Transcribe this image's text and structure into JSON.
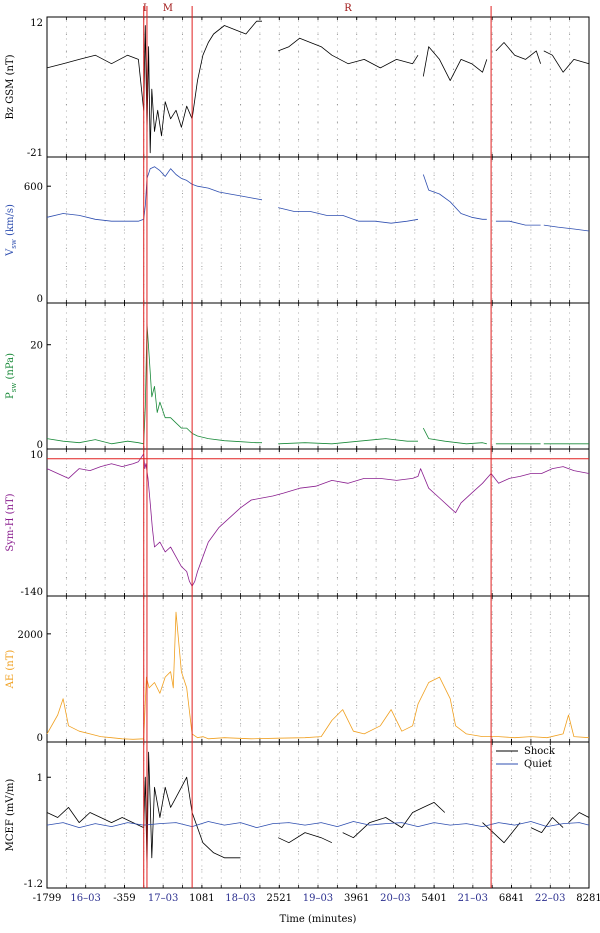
{
  "chart_data": {
    "type": "line",
    "xlabel": "Time (minutes)",
    "xlim": [
      -1799,
      8281
    ],
    "xticks": [
      -1799,
      -359,
      1081,
      2521,
      3961,
      5401,
      6841,
      8281
    ],
    "date_labels": [
      {
        "text": "16–03",
        "x": -1080
      },
      {
        "text": "17–03",
        "x": 360
      },
      {
        "text": "18–03",
        "x": 1800
      },
      {
        "text": "19–03",
        "x": 3240
      },
      {
        "text": "20–03",
        "x": 4680
      },
      {
        "text": "21–03",
        "x": 6120
      },
      {
        "text": "22–03",
        "x": 7560
      }
    ],
    "event_lines": [
      0,
      60,
      900,
      6460
    ],
    "event_labels": [
      {
        "text": "I",
        "x": 20
      },
      {
        "text": "M",
        "x": 450
      },
      {
        "text": "R",
        "x": 3800
      }
    ],
    "colors": {
      "event": "#e02020",
      "bz": "#000000",
      "vsw": "#2f4fb0",
      "psw": "#1a8a3a",
      "symh": "#8a1f8f",
      "ae": "#f0a020",
      "shock": "#000000",
      "quiet": "#2f4fb0",
      "date": "#2b2f8f"
    },
    "panels": [
      {
        "id": "bz",
        "ylabel": "Bz GSM (nT)",
        "ylim": [
          -21,
          12
        ],
        "yticks": [
          -21,
          12
        ],
        "gaps": [
          [
            2200,
            2500
          ],
          [
            5100,
            5200
          ],
          [
            6380,
            6550
          ],
          [
            7380,
            7440
          ]
        ],
        "series": [
          {
            "color_key": "bz",
            "x": [
              -1799,
              -1500,
              -1200,
              -900,
              -600,
              -300,
              -100,
              0,
              30,
              60,
              90,
              120,
              150,
              200,
              260,
              330,
              400,
              500,
              600,
              700,
              800,
              900,
              1000,
              1100,
              1200,
              1300,
              1500,
              1700,
              1900,
              2100,
              2200,
              2500,
              2700,
              2900,
              3100,
              3300,
              3500,
              3800,
              4100,
              4400,
              4700,
              5000,
              5100,
              5200,
              5300,
              5500,
              5700,
              5900,
              6100,
              6300,
              6380,
              6550,
              6700,
              6900,
              7100,
              7300,
              7380,
              7440,
              7600,
              7800,
              8000,
              8281
            ],
            "y": [
              0,
              1,
              2,
              3,
              1,
              3,
              2,
              -10,
              10,
              -15,
              5,
              -20,
              -5,
              -15,
              -10,
              -16,
              -8,
              -12,
              -10,
              -14,
              -9,
              -12,
              -3,
              3,
              6,
              8,
              10,
              9,
              8,
              11,
              11,
              4,
              5,
              7,
              6,
              5,
              3,
              1,
              2,
              0,
              2,
              1,
              3,
              -2,
              5,
              2,
              -3,
              2,
              1,
              -1,
              2,
              4,
              6,
              3,
              2,
              4,
              1,
              4,
              3,
              -1,
              2,
              1
            ]
          }
        ]
      },
      {
        "id": "vsw",
        "ylabel": "V_SW (km/s)",
        "ylim": [
          0,
          750
        ],
        "yticks": [
          0,
          600
        ],
        "gaps": [
          [
            2200,
            2500
          ],
          [
            5100,
            5200
          ],
          [
            6380,
            6550
          ],
          [
            7380,
            7440
          ]
        ],
        "series": [
          {
            "color_key": "vsw",
            "x": [
              -1799,
              -1500,
              -1200,
              -900,
              -600,
              -300,
              -100,
              0,
              30,
              60,
              120,
              200,
              300,
              400,
              500,
              600,
              700,
              800,
              900,
              1000,
              1200,
              1400,
              1600,
              1800,
              2000,
              2200,
              2500,
              2800,
              3100,
              3400,
              3700,
              4000,
              4300,
              4600,
              4900,
              5100,
              5200,
              5300,
              5500,
              5700,
              5900,
              6100,
              6300,
              6380,
              6550,
              6800,
              7100,
              7380,
              7440,
              7700,
              8000,
              8281
            ],
            "y": [
              440,
              460,
              450,
              430,
              420,
              420,
              420,
              430,
              500,
              640,
              690,
              700,
              680,
              650,
              690,
              660,
              640,
              630,
              610,
              600,
              590,
              570,
              560,
              550,
              540,
              530,
              490,
              470,
              470,
              450,
              450,
              420,
              420,
              410,
              420,
              430,
              660,
              580,
              560,
              520,
              460,
              440,
              430,
              430,
              420,
              420,
              400,
              400,
              400,
              390,
              380,
              370
            ]
          }
        ]
      },
      {
        "id": "psw",
        "ylabel": "P_SW (nPa)",
        "ylim": [
          0,
          28
        ],
        "yticks": [
          0,
          20
        ],
        "gaps": [
          [
            2200,
            2500
          ],
          [
            5100,
            5200
          ],
          [
            6380,
            6550
          ],
          [
            7380,
            7440
          ]
        ],
        "series": [
          {
            "color_key": "psw",
            "x": [
              -1799,
              -1500,
              -1200,
              -900,
              -600,
              -300,
              -100,
              0,
              30,
              60,
              100,
              150,
              200,
              250,
              300,
              400,
              500,
              600,
              700,
              800,
              900,
              1000,
              1200,
              1500,
              1800,
              2100,
              2200,
              2500,
              3000,
              3500,
              4000,
              4500,
              4900,
              5100,
              5200,
              5300,
              5600,
              6000,
              6300,
              6380,
              6550,
              7000,
              7380,
              7440,
              8000,
              8281
            ],
            "y": [
              2,
              1.5,
              1.2,
              1.8,
              1,
              1.5,
              1.2,
              1,
              8,
              24,
              18,
              10,
              12,
              7,
              9,
              6,
              6,
              5,
              4,
              4,
              3,
              2.5,
              2,
              1.6,
              1.4,
              1.2,
              1.2,
              1,
              1.2,
              1,
              1.5,
              2,
              1.5,
              1.5,
              4,
              2,
              1.5,
              1,
              1.2,
              1,
              1,
              1,
              1,
              1,
              1,
              1
            ]
          }
        ]
      },
      {
        "id": "symh",
        "ylabel": "Sym-H (nT)",
        "ylim": [
          -140,
          10
        ],
        "yticks": [
          -140,
          10
        ],
        "hline": 0,
        "series": [
          {
            "color_key": "symh",
            "x": [
              -1799,
              -1600,
              -1400,
              -1200,
              -1000,
              -800,
              -600,
              -400,
              -200,
              -100,
              0,
              20,
              40,
              80,
              120,
              160,
              200,
              300,
              400,
              500,
              600,
              700,
              800,
              850,
              900,
              950,
              1000,
              1100,
              1200,
              1400,
              1600,
              1800,
              2000,
              2200,
              2400,
              2600,
              2900,
              3200,
              3500,
              3800,
              4100,
              4400,
              4700,
              5000,
              5100,
              5150,
              5300,
              5500,
              5700,
              5800,
              5900,
              6100,
              6300,
              6460,
              6600,
              6800,
              7000,
              7200,
              7400,
              7600,
              7800,
              8000,
              8281
            ],
            "y": [
              -10,
              -15,
              -20,
              -10,
              -12,
              -8,
              -5,
              -8,
              -5,
              -3,
              5,
              -10,
              -5,
              -20,
              -45,
              -70,
              -90,
              -85,
              -95,
              -90,
              -100,
              -110,
              -115,
              -125,
              -130,
              -125,
              -115,
              -100,
              -85,
              -70,
              -60,
              -50,
              -42,
              -40,
              -38,
              -35,
              -30,
              -28,
              -22,
              -25,
              -20,
              -20,
              -22,
              -20,
              -18,
              -10,
              -30,
              -40,
              -50,
              -55,
              -45,
              -35,
              -25,
              -15,
              -25,
              -20,
              -18,
              -15,
              -15,
              -10,
              -8,
              -12,
              -15
            ]
          }
        ]
      },
      {
        "id": "ae",
        "ylabel": "AE (nT)",
        "ylim": [
          0,
          2700
        ],
        "yticks": [
          0,
          2000
        ],
        "series": [
          {
            "color_key": "ae",
            "x": [
              -1799,
              -1600,
              -1500,
              -1400,
              -1200,
              -1000,
              -800,
              -600,
              -400,
              -200,
              0,
              50,
              100,
              200,
              300,
              400,
              500,
              550,
              600,
              700,
              800,
              900,
              1000,
              1100,
              1200,
              1500,
              2000,
              2500,
              3000,
              3300,
              3500,
              3700,
              3900,
              4100,
              4400,
              4600,
              4800,
              5000,
              5100,
              5300,
              5500,
              5700,
              5800,
              6000,
              6300,
              6600,
              6900,
              7200,
              7500,
              7800,
              7900,
              8000,
              8281
            ],
            "y": [
              150,
              500,
              800,
              300,
              200,
              150,
              100,
              80,
              60,
              50,
              60,
              1200,
              1000,
              1100,
              900,
              1200,
              1300,
              1000,
              2400,
              1300,
              1000,
              150,
              80,
              100,
              60,
              80,
              60,
              70,
              80,
              100,
              400,
              600,
              200,
              150,
              300,
              600,
              200,
              300,
              700,
              1100,
              1200,
              800,
              300,
              150,
              100,
              100,
              80,
              100,
              80,
              150,
              500,
              100,
              80
            ]
          }
        ]
      },
      {
        "id": "mcef",
        "ylabel": "MCEF (mV/m)",
        "ylim": [
          -1.2,
          1.7
        ],
        "yticks": [
          -1.2,
          1.0
        ],
        "legend": [
          "Shock",
          "Quiet"
        ],
        "series": [
          {
            "name": "Shock",
            "color_key": "shock",
            "gaps": [
              [
                1800,
                2500
              ],
              [
                3500,
                3700
              ],
              [
                5600,
                6300
              ],
              [
                7000,
                7200
              ],
              [
                7800,
                7900
              ]
            ],
            "x": [
              -1799,
              -1600,
              -1400,
              -1200,
              -1000,
              -800,
              -600,
              -400,
              -200,
              0,
              30,
              60,
              90,
              120,
              150,
              200,
              300,
              400,
              500,
              600,
              700,
              800,
              900,
              1000,
              1100,
              1300,
              1500,
              1800,
              2500,
              2700,
              3000,
              3300,
              3500,
              3700,
              3900,
              4200,
              4500,
              4800,
              5000,
              5200,
              5400,
              5600,
              6300,
              6500,
              6700,
              7000,
              7200,
              7400,
              7600,
              7800,
              7900,
              8100,
              8281
            ],
            "y": [
              0.3,
              0.2,
              0.4,
              0.1,
              0.3,
              0.2,
              0.1,
              0.2,
              0.1,
              0.0,
              1.0,
              -0.8,
              1.5,
              0.5,
              -0.6,
              0.8,
              0.2,
              0.8,
              0.4,
              0.6,
              0.8,
              1.0,
              0.3,
              0.0,
              -0.3,
              -0.5,
              -0.6,
              -0.6,
              -0.2,
              -0.3,
              -0.1,
              -0.2,
              -0.3,
              -0.1,
              -0.2,
              0.1,
              0.2,
              0.0,
              0.3,
              0.4,
              0.5,
              0.3,
              0.1,
              -0.1,
              -0.3,
              0.1,
              0.0,
              -0.1,
              0.2,
              0.0,
              0.1,
              0.3,
              0.2
            ]
          },
          {
            "name": "Quiet",
            "color_key": "quiet",
            "x": [
              -1799,
              -1500,
              -1200,
              -900,
              -600,
              -300,
              0,
              300,
              600,
              900,
              1200,
              1500,
              1800,
              2100,
              2400,
              2700,
              3000,
              3300,
              3600,
              3900,
              4200,
              4500,
              4800,
              5100,
              5400,
              5700,
              6000,
              6300,
              6600,
              6900,
              7200,
              7500,
              7800,
              8100,
              8281
            ],
            "y": [
              0.05,
              0.1,
              0.0,
              0.08,
              0.02,
              0.1,
              0.05,
              0.08,
              0.1,
              0.02,
              0.12,
              0.05,
              0.1,
              0.0,
              0.08,
              0.1,
              0.05,
              0.1,
              0.02,
              0.12,
              0.05,
              0.08,
              0.1,
              0.02,
              0.1,
              0.05,
              0.08,
              0.02,
              0.1,
              0.05,
              0.12,
              0.02,
              0.08,
              0.1,
              0.05
            ]
          }
        ]
      }
    ]
  }
}
